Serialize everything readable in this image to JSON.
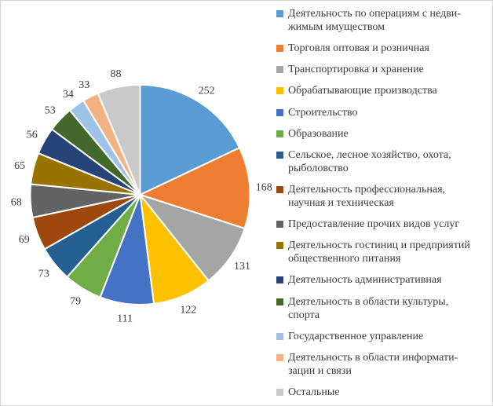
{
  "frame": {
    "border_color": "#D6D6D6",
    "background": "#FFFFFF"
  },
  "chart_data": {
    "type": "pie",
    "title": "",
    "total": 1402,
    "start_angle_deg": 0,
    "direction": "clockwise",
    "legend_position": "right",
    "data_labels": "value, outside end",
    "label_color": "#3B3B3B",
    "slices": [
      {
        "label": "Деятельность по операциям с недвижимым имуществом",
        "value": 252,
        "color": "#5B9BD5"
      },
      {
        "label": "Торговля оптовая и розничная",
        "value": 168,
        "color": "#ED7D31"
      },
      {
        "label": "Транспортировка и хранение",
        "value": 131,
        "color": "#A5A5A5"
      },
      {
        "label": "Обрабатывающие производства",
        "value": 122,
        "color": "#FFC000"
      },
      {
        "label": "Строительство",
        "value": 111,
        "color": "#4472C4"
      },
      {
        "label": "Образование",
        "value": 79,
        "color": "#70AD47"
      },
      {
        "label": "Сельское, лесное хозяйство, охота, рыболовство",
        "value": 73,
        "color": "#255E91"
      },
      {
        "label": "Деятельность профессиональная, научная и техническая",
        "value": 69,
        "color": "#9E480E"
      },
      {
        "label": "Предоставление прочих видов услуг",
        "value": 68,
        "color": "#636363"
      },
      {
        "label": "Деятельность гостиниц и предприятий общественного питания",
        "value": 65,
        "color": "#997300"
      },
      {
        "label": "Деятельность административная",
        "value": 56,
        "color": "#264478"
      },
      {
        "label": "Деятельность в области культуры, спорта",
        "value": 53,
        "color": "#43682B"
      },
      {
        "label": "Государственное управление",
        "value": 34,
        "color": "#9DC3E6"
      },
      {
        "label": "Деятельность в области информатизации и связи",
        "value": 33,
        "color": "#F4B183"
      },
      {
        "label": "Остальные",
        "value": 88,
        "color": "#C9C9C9"
      }
    ]
  },
  "legend": {
    "items": [
      {
        "lines": [
          "Деятельность по операциям с недви-",
          "жимым имуществом"
        ]
      },
      {
        "lines": [
          "Торговля оптовая и розничная"
        ]
      },
      {
        "lines": [
          "Транспортировка и хранение"
        ]
      },
      {
        "lines": [
          "Обрабатывающие производства"
        ]
      },
      {
        "lines": [
          "Строительство"
        ]
      },
      {
        "lines": [
          "Образование"
        ]
      },
      {
        "lines": [
          "Сельское, лесное хозяйство, охота,",
          "рыболовство"
        ]
      },
      {
        "lines": [
          "Деятельность профессиональная,",
          "научная и техническая"
        ]
      },
      {
        "lines": [
          "Предоставление прочих видов услуг"
        ]
      },
      {
        "lines": [
          "Деятельность гостиниц и предприятий",
          "общественного питания"
        ]
      },
      {
        "lines": [
          "Деятельность административная"
        ]
      },
      {
        "lines": [
          "Деятельность в области культуры,",
          "спорта"
        ]
      },
      {
        "lines": [
          "Государственное управление"
        ]
      },
      {
        "lines": [
          "Деятельность в области информати-",
          "зации и связи"
        ]
      },
      {
        "lines": [
          "Остальные"
        ]
      }
    ]
  }
}
